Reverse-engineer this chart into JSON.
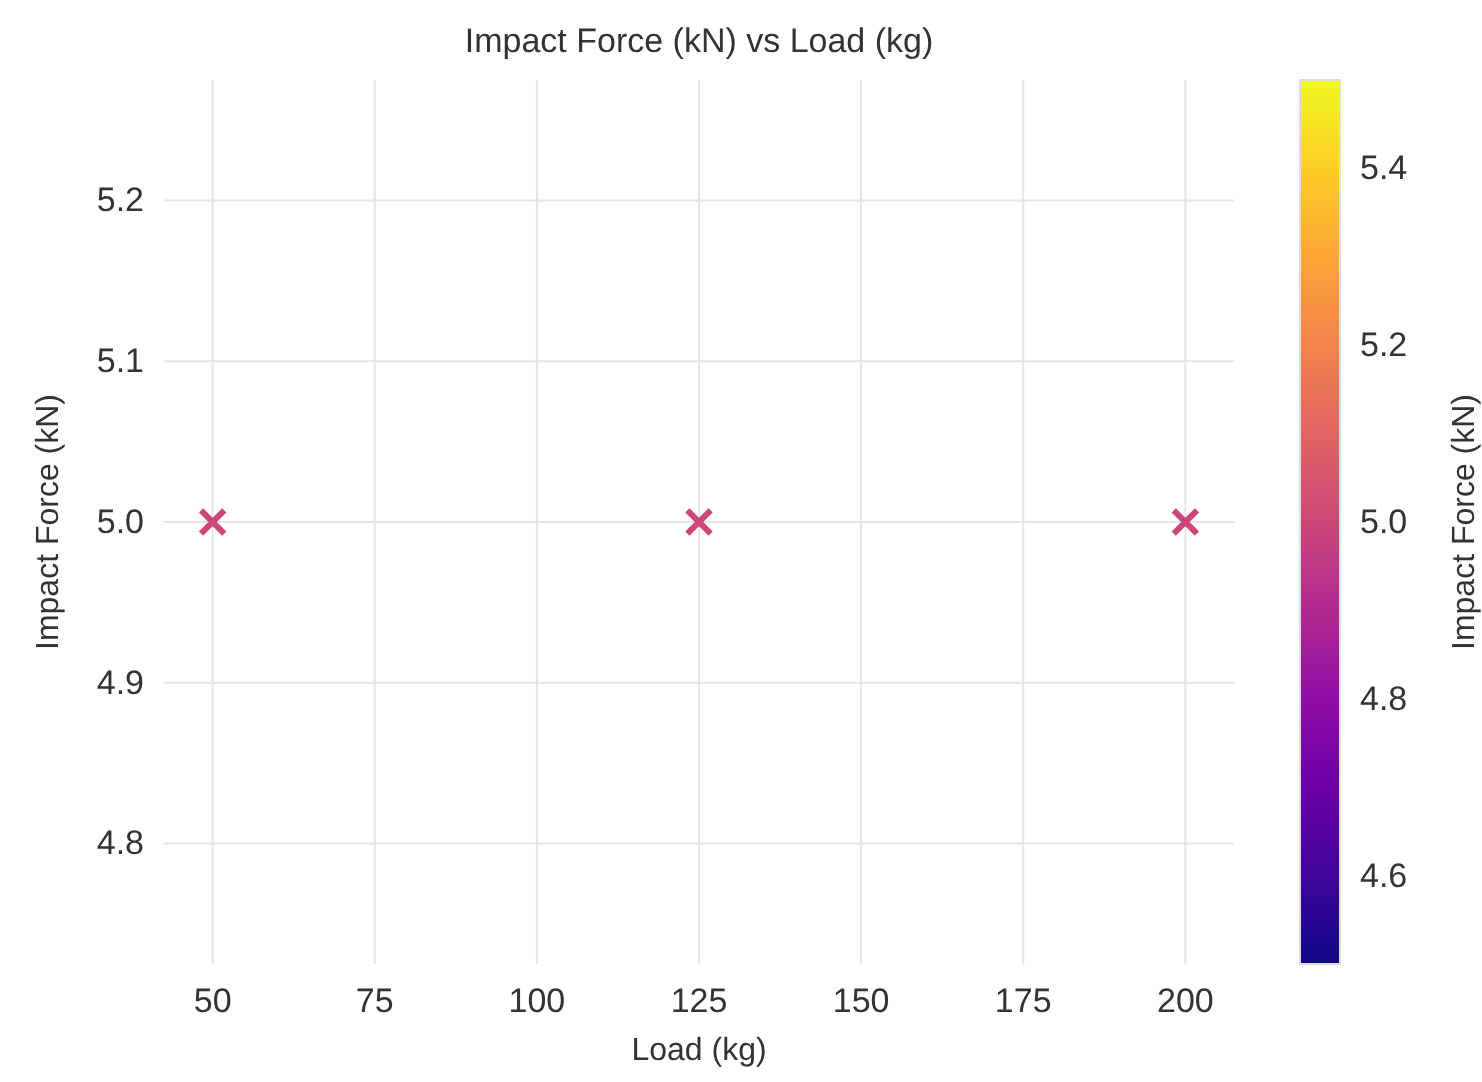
{
  "chart_data": {
    "type": "scatter",
    "title": "Impact Force (kN) vs Load (kg)",
    "xlabel": "Load (kg)",
    "ylabel": "Impact Force (kN)",
    "clabel": "Impact Force (kN)",
    "x": [
      50,
      125,
      200
    ],
    "values": [
      5.0,
      5.0,
      5.0
    ],
    "cvalues": [
      5.0,
      5.0,
      5.0
    ],
    "marker": "cross",
    "grid": true,
    "xlim": [
      42.5,
      207.5
    ],
    "xticks": [
      50,
      75,
      100,
      125,
      150,
      175,
      200
    ],
    "ylim": [
      4.725,
      5.275
    ],
    "yticks": [
      {
        "value": 4.8,
        "label": "4.8"
      },
      {
        "value": 4.9,
        "label": "4.9"
      },
      {
        "value": 5.0,
        "label": "5.0"
      },
      {
        "value": 5.1,
        "label": "5.1"
      },
      {
        "value": 5.2,
        "label": "5.2"
      }
    ],
    "clim": [
      4.5,
      5.5
    ],
    "cticks": [
      {
        "value": 4.6,
        "label": "4.6"
      },
      {
        "value": 4.8,
        "label": "4.8"
      },
      {
        "value": 5.0,
        "label": "5.0"
      },
      {
        "value": 5.2,
        "label": "5.2"
      },
      {
        "value": 5.4,
        "label": "5.4"
      }
    ]
  }
}
